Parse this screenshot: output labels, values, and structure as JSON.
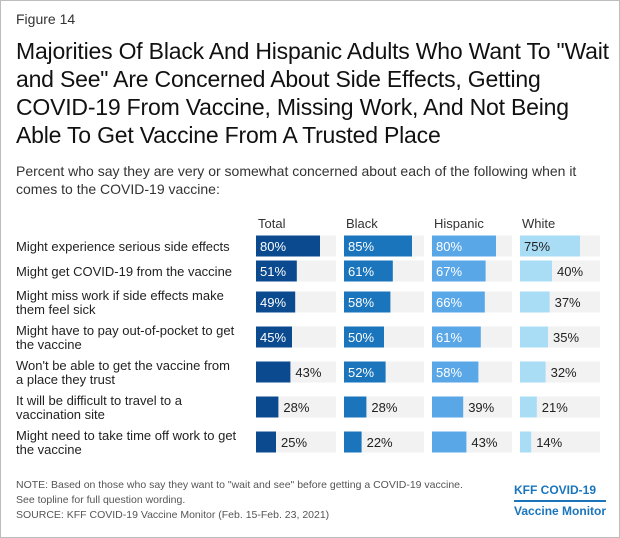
{
  "figure_label": "Figure 14",
  "title": "Majorities Of Black And Hispanic Adults Who Want To \"Wait and See\" Are Concerned About Side Effects, Getting COVID-19 From Vaccine, Missing Work, And Not Being Able To Get Vaccine From A Trusted Place",
  "subtitle": "Percent who say they are very or somewhat concerned about each of the following when it comes to the COVID-19 vaccine:",
  "note_line1": "NOTE: Based on those who say they want to \"wait and see\" before getting a COVID-19 vaccine.",
  "note_line2": "See topline for full question wording.",
  "source": "SOURCE: KFF COVID-19 Vaccine Monitor (Feb. 15-Feb. 23, 2021)",
  "logo_line1": "KFF COVID-19",
  "logo_line2": "Vaccine Monitor",
  "chart_data": {
    "type": "bar",
    "orientation": "horizontal",
    "layout": "small-multiples",
    "value_suffix": "%",
    "xlim": [
      0,
      100
    ],
    "categories": [
      [
        "Might experience serious side effects"
      ],
      [
        "Might get COVID-19 from the vaccine"
      ],
      [
        "Might miss work if side effects make",
        "them feel sick"
      ],
      [
        "Might have to pay out-of-pocket to get",
        "the vaccine"
      ],
      [
        "Won't be able to get the vaccine from",
        "a place they trust"
      ],
      [
        "It will be difficult to travel to a",
        "vaccination site"
      ],
      [
        "Might need to take time off work to get",
        "the vaccine"
      ]
    ],
    "series": [
      {
        "name": "Total",
        "color": "#0b4a8f",
        "values": [
          80,
          51,
          49,
          45,
          43,
          28,
          25
        ]
      },
      {
        "name": "Black",
        "color": "#1a75bc",
        "values": [
          85,
          61,
          58,
          50,
          52,
          28,
          22
        ]
      },
      {
        "name": "Hispanic",
        "color": "#5aa7e8",
        "values": [
          80,
          67,
          66,
          61,
          58,
          39,
          43
        ]
      },
      {
        "name": "White",
        "color": "#a9dcf5",
        "values": [
          75,
          40,
          37,
          35,
          32,
          21,
          14
        ]
      }
    ],
    "track_color": "#f2f2f2",
    "grid": false,
    "legend": "none"
  }
}
